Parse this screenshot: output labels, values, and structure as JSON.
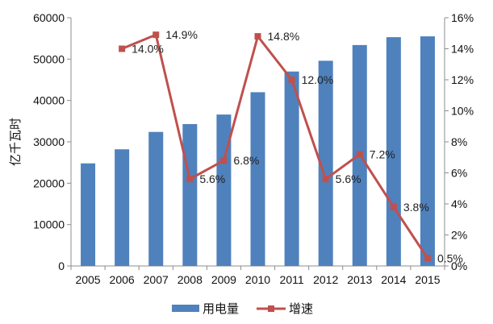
{
  "chart_data": {
    "type": "bar",
    "categories": [
      "2005",
      "2006",
      "2007",
      "2008",
      "2009",
      "2010",
      "2011",
      "2012",
      "2013",
      "2014",
      "2015"
    ],
    "series": [
      {
        "name": "用电量",
        "type": "bar",
        "axis": "left",
        "color": "#4f81bd",
        "values": [
          24800,
          28200,
          32400,
          34300,
          36600,
          42000,
          47000,
          49600,
          53400,
          55300,
          55500
        ]
      },
      {
        "name": "增速",
        "type": "line",
        "axis": "right",
        "color": "#c0504d",
        "values": [
          null,
          14.0,
          14.9,
          5.6,
          6.8,
          14.8,
          12.0,
          5.6,
          7.2,
          3.8,
          0.5
        ],
        "labels": [
          "",
          "14.0%",
          "14.9%",
          "5.6%",
          "6.8%",
          "14.8%",
          "12.0%",
          "5.6%",
          "7.2%",
          "3.8%",
          "0.5%"
        ]
      }
    ],
    "ylabel": "亿千瓦时",
    "ylim": [
      0,
      60000
    ],
    "yticks": [
      "0",
      "10000",
      "20000",
      "30000",
      "40000",
      "50000",
      "60000"
    ],
    "y2lim": [
      0,
      16
    ],
    "y2ticks": [
      "0%",
      "2%",
      "4%",
      "6%",
      "8%",
      "10%",
      "12%",
      "14%",
      "16%"
    ],
    "grid": false,
    "legend": "bottom"
  }
}
